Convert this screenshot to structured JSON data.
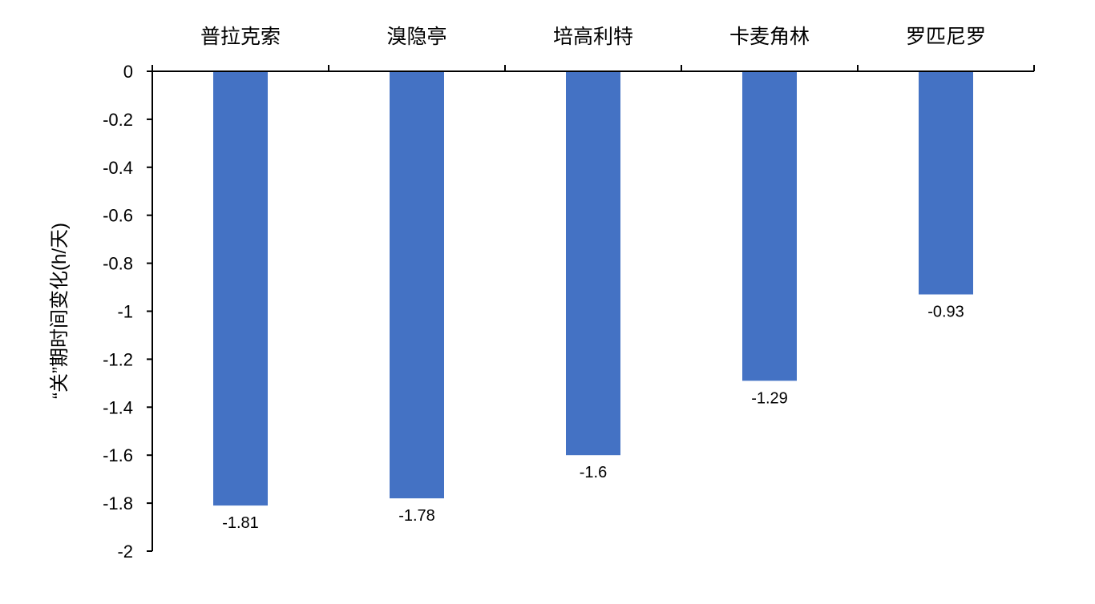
{
  "chart_data": {
    "type": "bar",
    "title": "",
    "xlabel": "",
    "ylabel": "“关”期时间变化(h/天)",
    "categories": [
      "普拉克索",
      "溴隐亭",
      "培高利特",
      "卡麦角林",
      "罗匹尼罗"
    ],
    "series": [
      {
        "values": [
          -1.81,
          -1.78,
          -1.6,
          -1.29,
          -0.93
        ],
        "color": "#4472C4"
      }
    ],
    "data_labels": [
      "-1.81",
      "-1.78",
      "-1.6",
      "-1.29",
      "-0.93"
    ],
    "ylim": [
      -2,
      0
    ],
    "yticks": [
      0,
      -0.2,
      -0.4,
      -0.6,
      -0.8,
      -1,
      -1.2,
      -1.4,
      -1.6,
      -1.8,
      -2
    ],
    "ytick_labels": [
      "0",
      "-0.2",
      "-0.4",
      "-0.6",
      "-0.8",
      "-1",
      "-1.2",
      "-1.4",
      "-1.6",
      "-1.8",
      "-2"
    ],
    "category_axis_position": "top",
    "grid": false,
    "legend": "none"
  }
}
